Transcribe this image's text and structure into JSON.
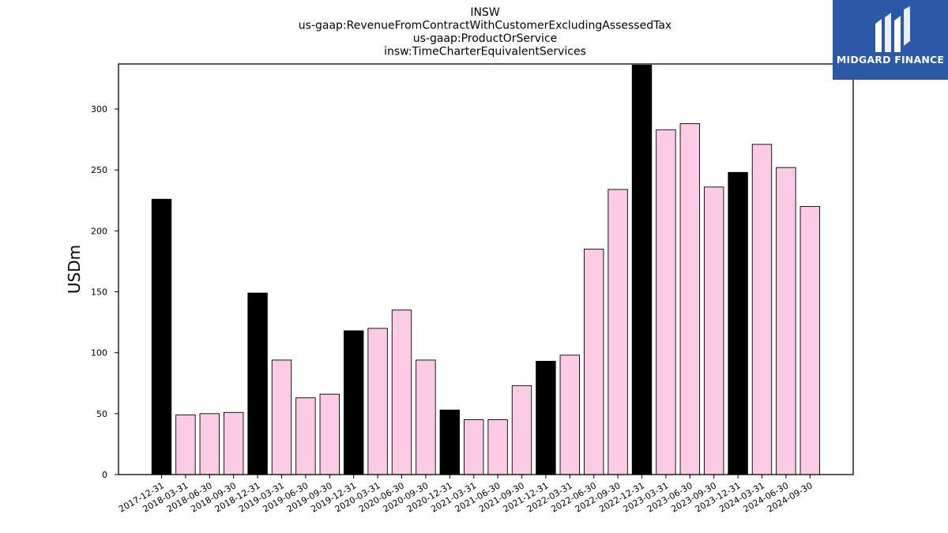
{
  "chart_data": {
    "type": "bar",
    "title_lines": [
      "INSW",
      "us-gaap:RevenueFromContractWithCustomerExcludingAssessedTax",
      "us-gaap:ProductOrService",
      "insw:TimeCharterEquivalentServices"
    ],
    "ylabel": "USDm",
    "xlabel": "",
    "ylim": [
      0,
      337
    ],
    "yticks": [
      0,
      50,
      100,
      150,
      200,
      250,
      300
    ],
    "grid": false,
    "legend": "none",
    "colors": {
      "annual": "#000000",
      "quarterly": "#fbcae4",
      "edge": "#000000"
    },
    "categories": [
      "2017-12-31",
      "2018-03-31",
      "2018-06-30",
      "2018-09-30",
      "2018-12-31",
      "2019-03-31",
      "2019-06-30",
      "2019-09-30",
      "2019-12-31",
      "2020-03-31",
      "2020-06-30",
      "2020-09-30",
      "2020-12-31",
      "2021-03-31",
      "2021-06-30",
      "2021-09-30",
      "2021-12-31",
      "2022-03-31",
      "2022-06-30",
      "2022-09-30",
      "2022-12-31",
      "2023-03-31",
      "2023-06-30",
      "2023-09-30",
      "2023-12-31",
      "2024-03-31",
      "2024-06-30",
      "2024-09-30"
    ],
    "values": [
      226,
      49,
      50,
      51,
      149,
      94,
      63,
      66,
      118,
      120,
      135,
      94,
      53,
      45,
      45,
      73,
      93,
      98,
      185,
      234,
      336,
      283,
      288,
      236,
      248,
      271,
      252,
      220
    ],
    "highlight": [
      true,
      false,
      false,
      false,
      true,
      false,
      false,
      false,
      true,
      false,
      false,
      false,
      true,
      false,
      false,
      false,
      true,
      false,
      false,
      false,
      true,
      false,
      false,
      false,
      true,
      false,
      false,
      false
    ]
  },
  "logo": {
    "text": "MIDGARD FINANCE",
    "bg": "#2b59a8"
  }
}
